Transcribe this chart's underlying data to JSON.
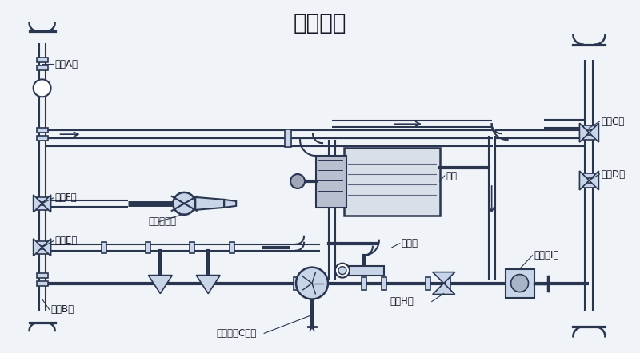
{
  "title": "水泵加水",
  "bg_color": "#f0f4f8",
  "line_color": "#2a3550",
  "label_color": "#1a1a2a",
  "label_fontsize": 8.5,
  "title_fontsize": 20,
  "labels": {
    "ball_A": "球阀A关",
    "ball_F": "球阀F关",
    "spray_out": "洒水炮出口",
    "ball_E": "球阀E关",
    "ball_B": "球阀B关",
    "three_way_G": "三通球阀C加水",
    "water_pump": "水泵",
    "tank_port": "罐体口",
    "ball_H": "球阀H开",
    "ball_C": "球阀C关",
    "ball_D": "球阀D关",
    "hydrant_I": "消防栓I关"
  }
}
